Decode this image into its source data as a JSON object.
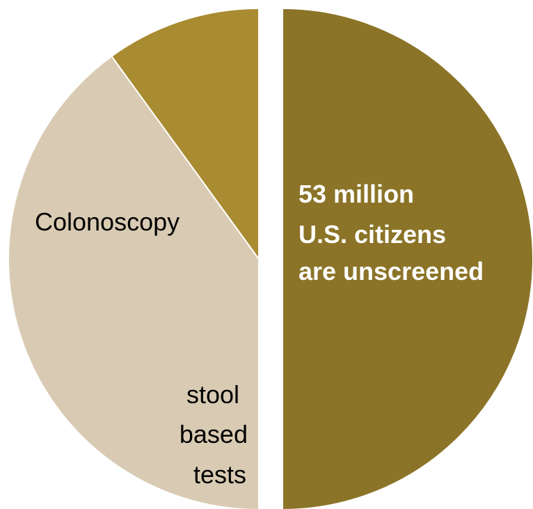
{
  "chart_data": {
    "type": "pie",
    "categories": [
      "unscreened",
      "Colonoscopy",
      "stool based tests"
    ],
    "values": [
      50,
      40,
      10
    ],
    "colors": [
      "#8b7428",
      "#d9cbb3",
      "#a98b31"
    ],
    "exploded_slice": "unscreened",
    "labels": {
      "unscreened": [
        "53  million",
        "U.S. citizens",
        "are unscreened"
      ],
      "colonoscopy": [
        "Colonoscopy"
      ],
      "stool": [
        "stool",
        "based",
        "tests"
      ]
    }
  }
}
